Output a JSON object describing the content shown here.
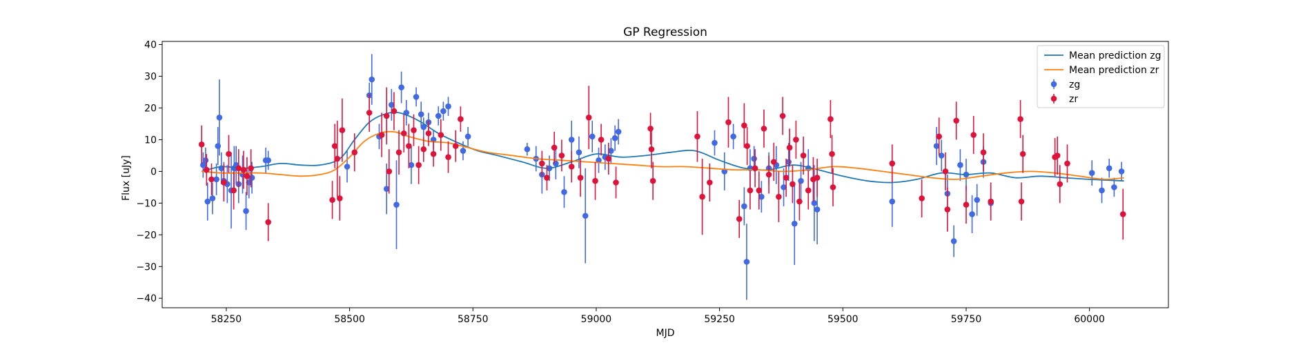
{
  "chart_data": {
    "type": "scatter",
    "title": "GP Regression",
    "xlabel": "MJD",
    "ylabel": "Flux [uJy]",
    "xlim": [
      58120,
      60160
    ],
    "ylim": [
      -43,
      41
    ],
    "x_ticks": [
      58250,
      58500,
      58750,
      59000,
      59250,
      59500,
      59750,
      60000
    ],
    "y_ticks": [
      -40,
      -30,
      -20,
      -10,
      0,
      10,
      20,
      30,
      40
    ],
    "grid": false,
    "legend_placement": "top-right",
    "legend": [
      {
        "label": "Mean prediction zg",
        "kind": "line",
        "color": "#1f77b4"
      },
      {
        "label": "Mean prediction zr",
        "kind": "line",
        "color": "#ff7f0e"
      },
      {
        "label": "zg",
        "kind": "errorbar",
        "color": "#4169e1"
      },
      {
        "label": "zr",
        "kind": "errorbar",
        "color": "#dc143c"
      }
    ],
    "lines": [
      {
        "name": "Mean prediction zg",
        "color": "#1f77b4",
        "x": [
          58200,
          58240,
          58280,
          58320,
          58360,
          58400,
          58440,
          58480,
          58510,
          58540,
          58570,
          58600,
          58640,
          58680,
          58720,
          58760,
          58800,
          58850,
          58900,
          58950,
          59000,
          59050,
          59100,
          59150,
          59200,
          59250,
          59300,
          59350,
          59400,
          59450,
          59500,
          59550,
          59600,
          59650,
          59700,
          59750,
          59800,
          59850,
          59900,
          59950,
          60000,
          60070
        ],
        "y": [
          0,
          1.5,
          1.0,
          1.5,
          2.5,
          2.0,
          2.0,
          4.0,
          10.0,
          15.5,
          18.0,
          18.5,
          16.0,
          12.0,
          9.0,
          6.5,
          5.0,
          3.0,
          1.0,
          3.0,
          5.5,
          4.5,
          5.0,
          6.0,
          6.5,
          3.5,
          1.0,
          0.5,
          2.0,
          0.5,
          -1.5,
          -3.0,
          -3.5,
          -2.5,
          -0.5,
          -1.0,
          -0.5,
          -2.0,
          -1.5,
          -2.0,
          -2.5,
          -3.0
        ]
      },
      {
        "name": "Mean prediction zr",
        "color": "#ff7f0e",
        "x": [
          58200,
          58240,
          58280,
          58320,
          58360,
          58400,
          58440,
          58470,
          58500,
          58530,
          58560,
          58590,
          58620,
          58660,
          58700,
          58740,
          58780,
          58830,
          58880,
          58930,
          58980,
          59030,
          59080,
          59130,
          59180,
          59230,
          59280,
          59330,
          59380,
          59430,
          59480,
          59530,
          59580,
          59630,
          59680,
          59730,
          59780,
          59830,
          59880,
          59930,
          59980,
          60030,
          60070
        ],
        "y": [
          0,
          -0.5,
          -0.5,
          -0.5,
          -1.0,
          -1.5,
          -1.0,
          0.5,
          4.5,
          9.5,
          12.0,
          12.5,
          11.0,
          9.5,
          9.0,
          7.5,
          6.0,
          5.0,
          4.0,
          3.5,
          3.0,
          2.5,
          2.0,
          1.5,
          1.5,
          1.0,
          0.5,
          0.5,
          0.0,
          0.5,
          1.5,
          1.0,
          0.0,
          -1.0,
          -2.0,
          -2.5,
          -1.5,
          -0.5,
          0.0,
          -0.5,
          -1.5,
          -2.5,
          -2.0
        ]
      }
    ],
    "series": [
      {
        "name": "zg",
        "color": "#4169e1",
        "x": [
          58203,
          58208,
          58212,
          58222,
          58230,
          58233,
          58236,
          58240,
          58245,
          58252,
          58260,
          58266,
          58270,
          58275,
          58283,
          58290,
          58296,
          58302,
          58330,
          58335,
          58495,
          58540,
          58545,
          58560,
          58575,
          58585,
          58595,
          58605,
          58615,
          58625,
          58635,
          58645,
          58650,
          58660,
          58670,
          58680,
          58690,
          58700,
          58730,
          58740,
          58860,
          58878,
          58890,
          58905,
          58918,
          58935,
          58950,
          58965,
          58978,
          58992,
          59005,
          59018,
          59030,
          59038,
          59045,
          59240,
          59260,
          59278,
          59300,
          59305,
          59312,
          59320,
          59335,
          59350,
          59365,
          59380,
          59390,
          59402,
          59415,
          59430,
          59442,
          59448,
          59600,
          59690,
          59700,
          59712,
          59725,
          59738,
          59750,
          59762,
          59772,
          59785,
          59800,
          60005,
          60025,
          60040,
          60050,
          60065
        ],
        "y": [
          2,
          3.5,
          -9.5,
          -8.5,
          -2.5,
          8,
          17,
          1,
          -3,
          -4,
          -6,
          1,
          2,
          -4,
          -1,
          -12.5,
          -3.5,
          -2,
          3.5,
          3.5,
          1.5,
          24,
          29,
          11,
          -5.5,
          21,
          -10.5,
          26.5,
          18.5,
          2,
          23.5,
          18,
          14,
          15.5,
          10,
          17.5,
          19,
          20.5,
          6.5,
          11,
          7,
          4,
          -1,
          1,
          2.5,
          -6.5,
          10,
          6,
          -14,
          11,
          3.5,
          4.5,
          6.5,
          10.5,
          12.5,
          9,
          0,
          11,
          -11,
          -28.5,
          1,
          4,
          -8,
          1,
          2,
          -5,
          3,
          -16.5,
          -3,
          1,
          -10,
          -12,
          -9.5,
          8,
          5,
          -7,
          -22,
          2,
          -1,
          -13.5,
          -9,
          3,
          -10,
          -0.5,
          -6,
          1,
          -5,
          0
        ],
        "err": [
          4,
          4,
          6,
          5,
          5,
          6,
          12,
          5,
          6,
          6,
          12,
          7,
          6,
          6,
          6,
          6,
          5,
          5,
          4,
          3,
          5,
          4,
          8,
          4,
          8,
          5,
          14,
          5,
          4,
          6,
          3,
          4,
          3,
          3,
          3,
          3,
          3,
          3,
          3,
          3,
          2,
          4,
          6,
          4,
          5,
          5,
          6,
          5,
          15,
          5,
          4,
          4,
          4,
          4,
          4,
          4,
          6,
          4,
          6,
          12,
          6,
          4,
          5,
          5,
          6,
          6,
          6,
          13,
          6,
          6,
          12,
          11,
          8,
          6,
          5,
          6,
          5,
          5,
          5,
          6,
          5,
          5,
          5,
          4,
          4,
          3,
          3,
          3
        ]
      },
      {
        "name": "zr",
        "color": "#dc143c",
        "x": [
          58200,
          58210,
          58220,
          58245,
          58255,
          58265,
          58275,
          58285,
          58292,
          58300,
          58335,
          58465,
          58470,
          58475,
          58480,
          58485,
          58510,
          58540,
          58565,
          58575,
          58580,
          58590,
          58600,
          58610,
          58620,
          58630,
          58640,
          58650,
          58660,
          58670,
          58685,
          58700,
          58715,
          58725,
          58890,
          58900,
          58915,
          58930,
          58950,
          58968,
          58985,
          58998,
          59010,
          59025,
          59040,
          59110,
          59112,
          59115,
          59205,
          59215,
          59230,
          59268,
          59290,
          59300,
          59306,
          59312,
          59322,
          59330,
          59340,
          59350,
          59360,
          59370,
          59378,
          59385,
          59392,
          59398,
          59405,
          59412,
          59420,
          59430,
          59440,
          59448,
          59475,
          59478,
          59480,
          59600,
          59660,
          59695,
          59708,
          59712,
          59730,
          59750,
          59765,
          59785,
          59800,
          59860,
          59862,
          59865,
          59930,
          59935,
          59940,
          59955,
          60068
        ],
        "y": [
          8.5,
          0.5,
          -2.5,
          -3.5,
          5.5,
          -6,
          1,
          0.5,
          -1.5,
          1,
          -16,
          -9,
          8,
          4,
          -8.5,
          13,
          6,
          18.5,
          11.5,
          17.5,
          0,
          19,
          6,
          12,
          8,
          13,
          2,
          7,
          12,
          5.5,
          11.5,
          4.5,
          8,
          16.5,
          2.5,
          -2,
          7.5,
          5,
          1.5,
          -2,
          17,
          -3,
          10,
          4,
          -3.5,
          13.5,
          7,
          -3,
          11,
          -8,
          -3.5,
          15.5,
          -15,
          14.5,
          8,
          -6,
          1,
          -6,
          13.5,
          -1,
          3,
          -8,
          17.5,
          -2,
          7.5,
          -4,
          10,
          -9.5,
          5,
          -6,
          -2.5,
          -2,
          16.5,
          5.5,
          -5,
          2.5,
          -8.5,
          11,
          0,
          -12,
          16,
          -10.5,
          11.5,
          6,
          -9.5,
          16.5,
          -9.5,
          5.5,
          4.5,
          5,
          -4,
          2.5,
          -13.5
        ],
        "err": [
          6,
          5,
          5,
          6,
          6,
          6,
          6,
          6,
          6,
          6,
          6,
          6,
          7,
          12,
          7,
          10,
          6,
          6,
          7,
          9,
          7,
          6,
          7,
          6,
          7,
          5,
          6,
          4,
          4,
          4,
          5,
          5,
          5,
          4,
          4,
          4,
          5,
          5,
          5,
          6,
          10,
          6,
          5,
          5,
          5,
          5,
          6,
          6,
          8,
          12,
          6,
          8,
          6,
          7,
          6,
          6,
          6,
          6,
          6,
          6,
          6,
          8,
          6,
          6,
          6,
          6,
          6,
          6,
          6,
          6,
          7,
          6,
          6,
          6,
          6,
          6,
          6,
          6,
          6,
          7,
          6,
          6,
          6,
          6,
          6,
          6,
          6,
          6,
          6,
          6,
          6,
          6,
          8
        ]
      }
    ]
  }
}
